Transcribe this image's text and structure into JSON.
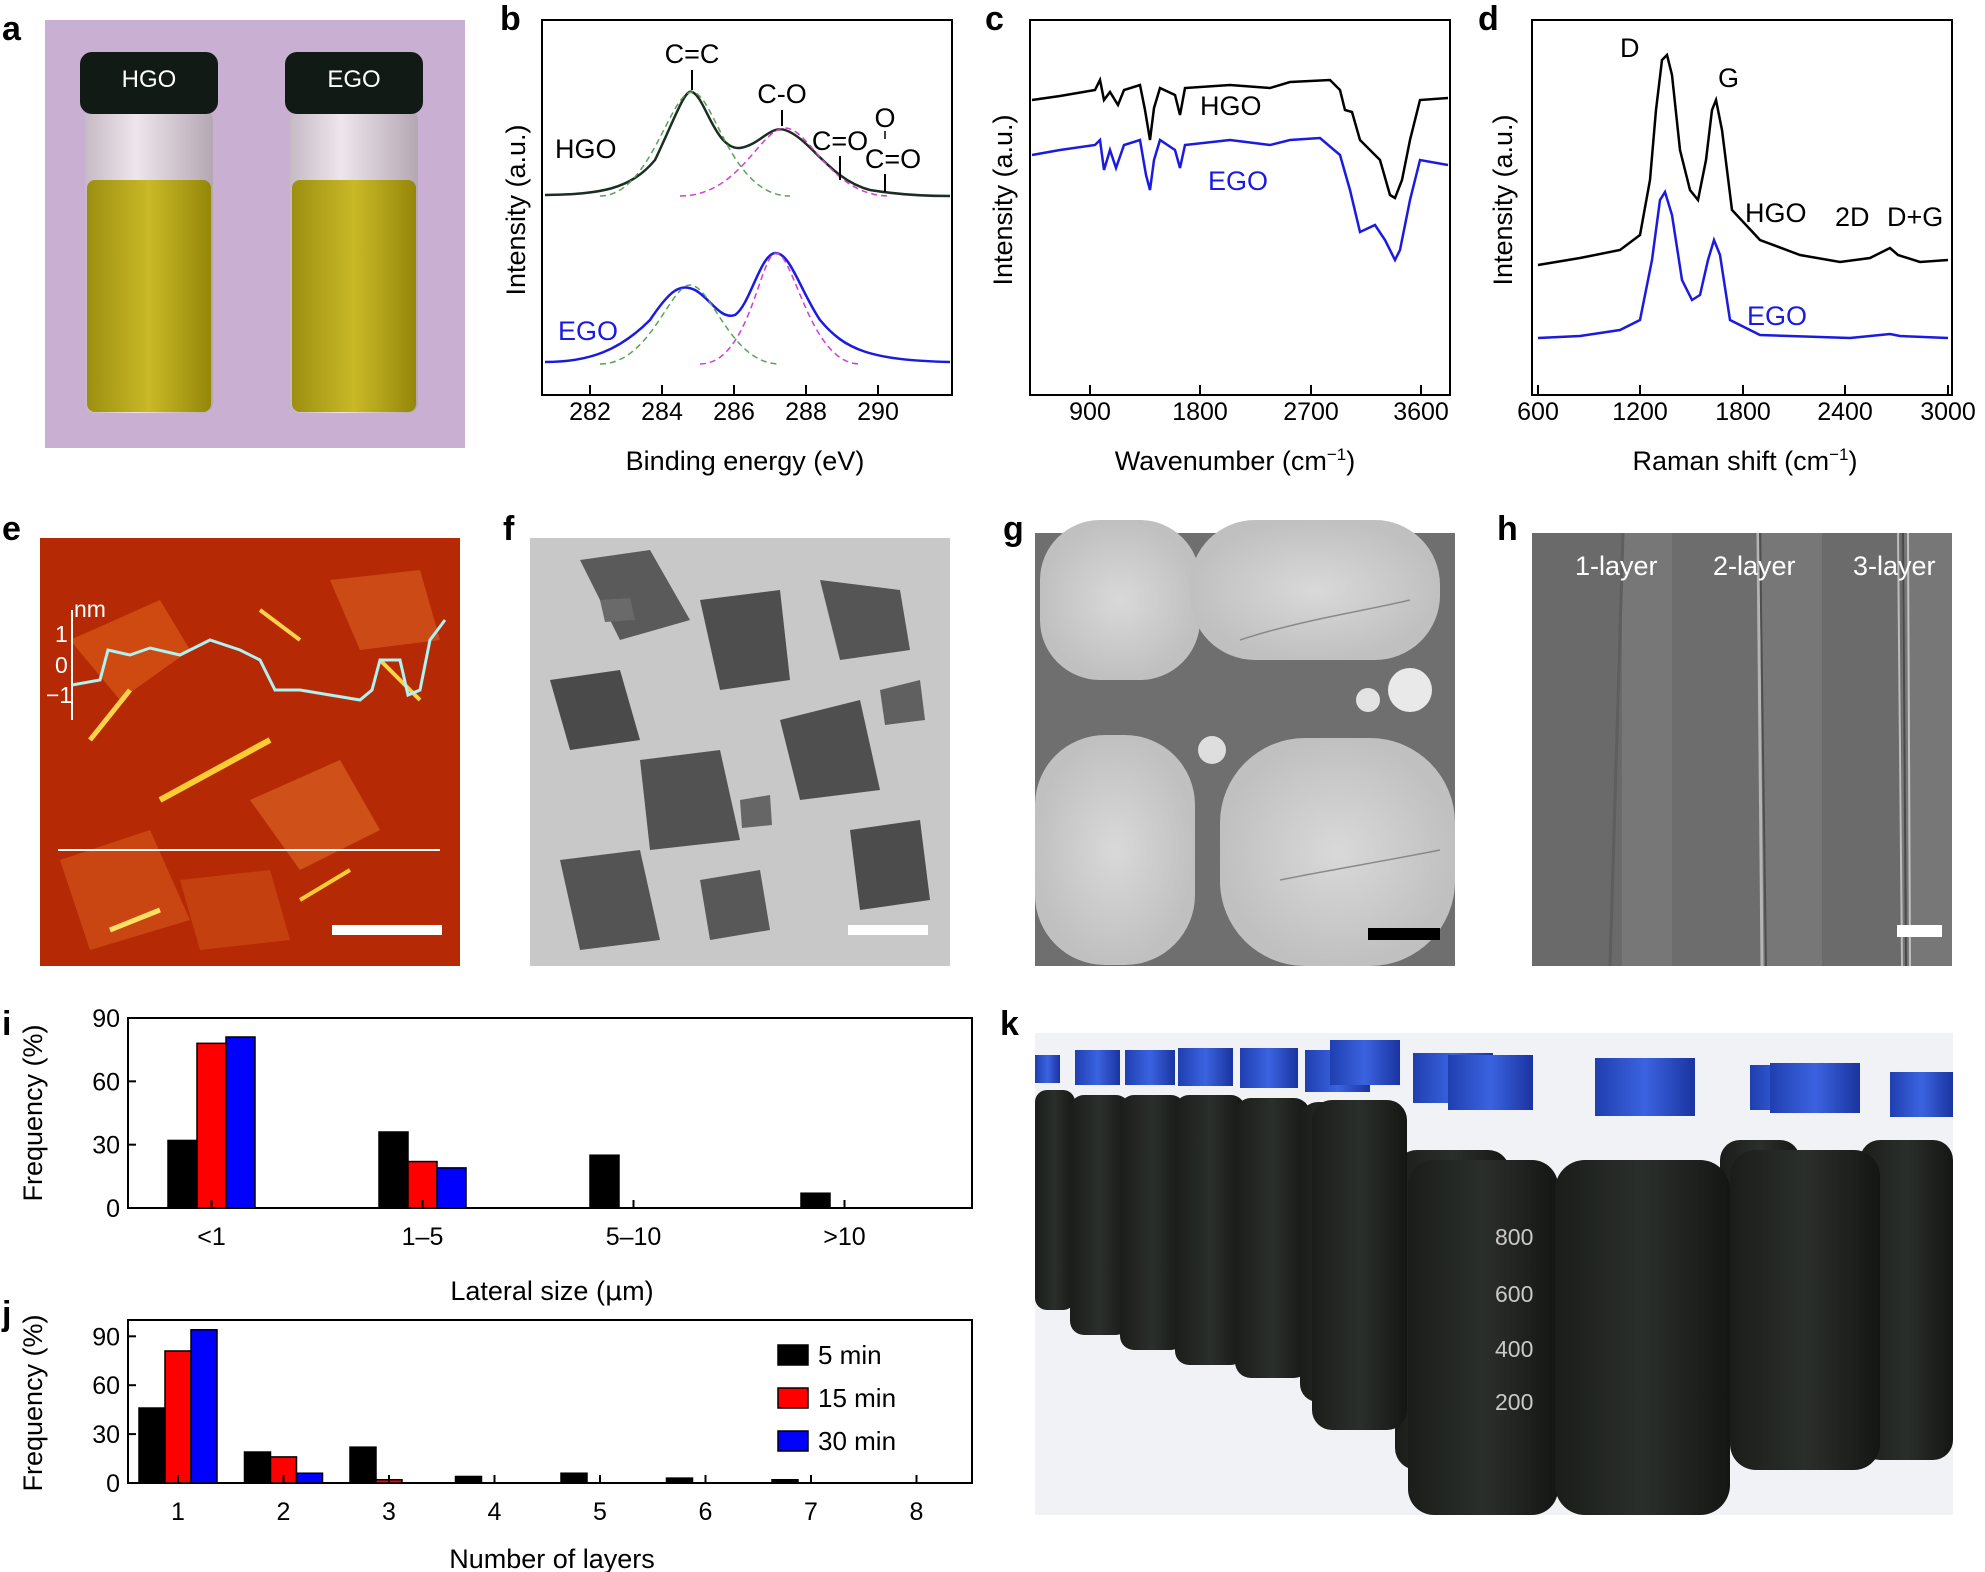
{
  "panels": {
    "a": {
      "label": "a",
      "vial1": "HGO",
      "vial2": "EGO"
    },
    "b": {
      "label": "b",
      "ylabel": "Intensity (a.u.)",
      "xlabel": "Binding energy (eV)",
      "xticks": [
        "282",
        "284",
        "286",
        "288",
        "290"
      ],
      "series_labels": [
        "HGO",
        "EGO"
      ],
      "peak_labels": [
        "C=C",
        "C-O",
        "C=O",
        "O",
        "C=O"
      ]
    },
    "c": {
      "label": "c",
      "ylabel": "Intensity (a.u.)",
      "xlabel": "Wavenumber (cm",
      "xlabel_sup": "−1",
      "xlabel_end": ")",
      "xticks": [
        "900",
        "1800",
        "2700",
        "3600"
      ],
      "series_labels": [
        "HGO",
        "EGO"
      ]
    },
    "d": {
      "label": "d",
      "ylabel": "Intensity (a.u.)",
      "xlabel": "Raman shift (cm",
      "xlabel_sup": "−1",
      "xlabel_end": ")",
      "xticks": [
        "600",
        "1200",
        "1800",
        "2400",
        "3000"
      ],
      "series_labels": [
        "HGO",
        "EGO"
      ],
      "peak_labels": [
        "D",
        "G",
        "2D",
        "D+G"
      ]
    },
    "e": {
      "label": "e",
      "unit": "nm",
      "yticks": [
        "1",
        "0",
        "−1"
      ]
    },
    "f": {
      "label": "f"
    },
    "g": {
      "label": "g"
    },
    "h": {
      "label": "h",
      "layers": [
        "1-layer",
        "2-layer",
        "3-layer"
      ]
    },
    "k": {
      "label": "k",
      "graduations": [
        "800",
        "600",
        "400",
        "200"
      ]
    }
  },
  "colors": {
    "black": "#000000",
    "red": "#ff0000",
    "blue": "#0000ff",
    "afm_bg": "#b52a05",
    "profile": "#aef3f3"
  },
  "chart_data": [
    {
      "panel": "i",
      "type": "bar",
      "title": "",
      "xlabel": "Lateral size (μm)",
      "ylabel": "Frequency (%)",
      "categories": [
        "<1",
        "1–5",
        "5–10",
        ">10"
      ],
      "ylim": [
        0,
        90
      ],
      "yticks": [
        0,
        30,
        60,
        90
      ],
      "series": [
        {
          "name": "5 min",
          "color": "#000000",
          "values": [
            32,
            36,
            25,
            7
          ]
        },
        {
          "name": "15 min",
          "color": "#ff0000",
          "values": [
            78,
            22,
            0,
            0
          ]
        },
        {
          "name": "30 min",
          "color": "#0000ff",
          "values": [
            81,
            19,
            0,
            0
          ]
        }
      ]
    },
    {
      "panel": "j",
      "type": "bar",
      "title": "",
      "xlabel": "Number of layers",
      "ylabel": "Frequency (%)",
      "categories": [
        "1",
        "2",
        "3",
        "4",
        "5",
        "6",
        "7",
        "8"
      ],
      "ylim": [
        0,
        100
      ],
      "yticks": [
        0,
        30,
        60,
        90
      ],
      "series": [
        {
          "name": "5 min",
          "color": "#000000",
          "values": [
            46,
            19,
            22,
            4,
            6,
            3,
            2,
            0
          ]
        },
        {
          "name": "15 min",
          "color": "#ff0000",
          "values": [
            81,
            16,
            2,
            0,
            0,
            0,
            0,
            0
          ]
        },
        {
          "name": "30 min",
          "color": "#0000ff",
          "values": [
            94,
            6,
            0,
            0,
            0,
            0,
            0,
            0
          ]
        }
      ],
      "legend": [
        "5 min",
        "15 min",
        "30 min"
      ],
      "legend_position": "top-right"
    }
  ]
}
